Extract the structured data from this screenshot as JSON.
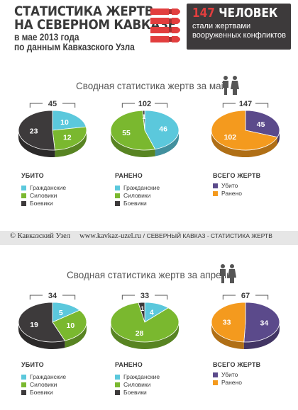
{
  "header": {
    "title_line1": "СТАТИСТИКА ЖЕРТВ",
    "title_line2": "НА СЕВЕРНОМ КАВКАЗЕ",
    "sub_line1": "в мае 2013 года",
    "sub_line2": "по данным Кавказского Узла",
    "count_number": "147",
    "count_word": "ЧЕЛОВЕК",
    "count_text": "стали жертвами вооруженных конфликтов"
  },
  "sections": [
    {
      "title": "Сводная статистика жертв за май",
      "legend_killed": {
        "head": "УБИТО",
        "items": [
          "Гражданские",
          "Силовики",
          "Боевики"
        ]
      },
      "legend_wounded": {
        "head": "РАНЕНО",
        "items": [
          "Гражданские",
          "Силовики",
          "Боевики"
        ]
      },
      "legend_total": {
        "head": "ВСЕГО ЖЕРТВ",
        "items": [
          "Убито",
          "Ранено"
        ]
      }
    },
    {
      "title": "Сводная статистика жертв за апрель",
      "legend_killed": {
        "head": "УБИТО",
        "items": [
          "Гражданские",
          "Силовики",
          "Боевики"
        ]
      },
      "legend_wounded": {
        "head": "РАНЕНО",
        "items": [
          "Гражданские",
          "Силовики",
          "Боевики"
        ]
      },
      "legend_total": {
        "head": "ВСЕГО ЖЕРТВ",
        "items": [
          "Убито",
          "Ранено"
        ]
      }
    }
  ],
  "footer": {
    "copyright": "© Кавказский Узел",
    "url": "www.kavkaz-uzel.ru",
    "separator": "/",
    "caption": "СЕВЕРНЫЙ КАВКАЗ - СТАТИСТИКА ЖЕРТВ"
  },
  "colors": {
    "civilian": "#5bc8dc",
    "security": "#7ab82f",
    "militant": "#3d3a3b",
    "killed": "#5b4a8b",
    "wounded": "#f49a1e",
    "accent_red": "#e23e3e"
  },
  "icons": [
    "cartridges-icon",
    "man-woman-icon"
  ],
  "chart_data": [
    {
      "type": "pie",
      "period": "май",
      "group": "Убито",
      "total": 45,
      "categories": [
        "Гражданские",
        "Силовики",
        "Боевики"
      ],
      "values": [
        10,
        12,
        23
      ],
      "colors": [
        "#5bc8dc",
        "#7ab82f",
        "#3d3a3b"
      ]
    },
    {
      "type": "pie",
      "period": "май",
      "group": "Ранено",
      "total": 102,
      "categories": [
        "Гражданские",
        "Силовики",
        "Боевики"
      ],
      "values": [
        46,
        55,
        1
      ],
      "colors": [
        "#5bc8dc",
        "#7ab82f",
        "#3d3a3b"
      ]
    },
    {
      "type": "pie",
      "period": "май",
      "group": "Всего жертв",
      "total": 147,
      "categories": [
        "Убито",
        "Ранено"
      ],
      "values": [
        45,
        102
      ],
      "colors": [
        "#5b4a8b",
        "#f49a1e"
      ]
    },
    {
      "type": "pie",
      "period": "апрель",
      "group": "Убито",
      "total": 34,
      "categories": [
        "Гражданские",
        "Силовики",
        "Боевики"
      ],
      "values": [
        5,
        10,
        19
      ],
      "colors": [
        "#5bc8dc",
        "#7ab82f",
        "#3d3a3b"
      ]
    },
    {
      "type": "pie",
      "period": "апрель",
      "group": "Ранено",
      "total": 33,
      "categories": [
        "Гражданские",
        "Силовики",
        "Боевики"
      ],
      "values": [
        4,
        28,
        1
      ],
      "colors": [
        "#5bc8dc",
        "#7ab82f",
        "#3d3a3b"
      ]
    },
    {
      "type": "pie",
      "period": "апрель",
      "group": "Всего жертв",
      "total": 67,
      "categories": [
        "Убито",
        "Ранено"
      ],
      "values": [
        34,
        33
      ],
      "colors": [
        "#5b4a8b",
        "#f49a1e"
      ]
    }
  ]
}
